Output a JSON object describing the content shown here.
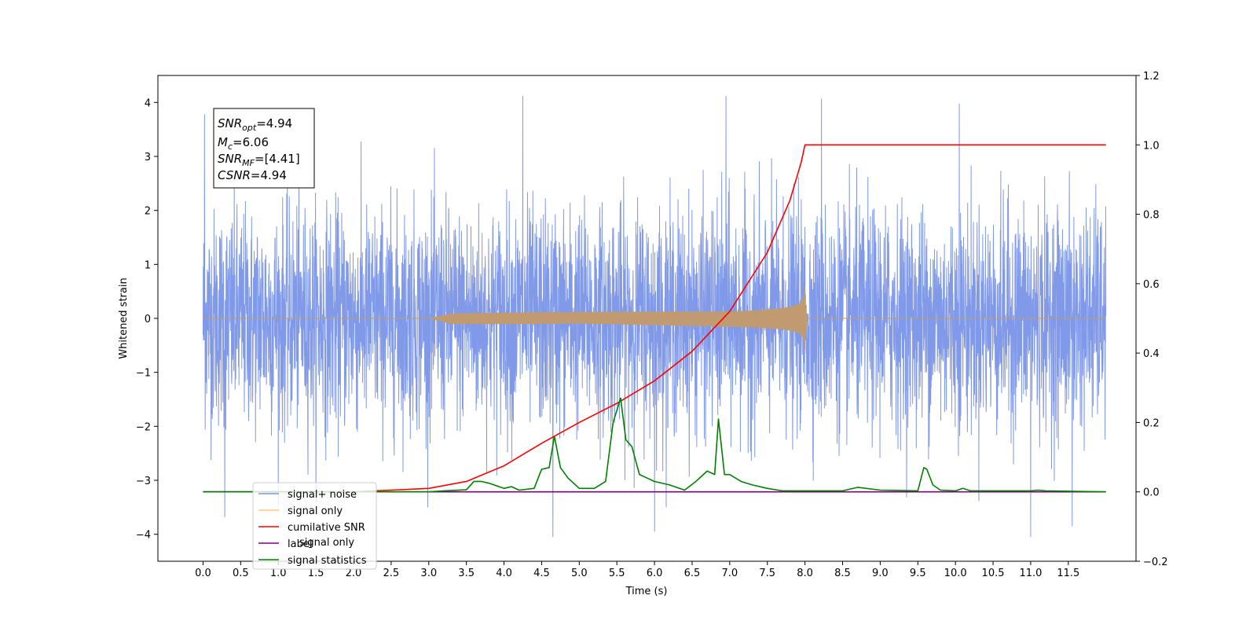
{
  "chart_data": {
    "type": "line",
    "xlabel": "Time (s)",
    "ylabel": "Whitened strain",
    "xlim": [
      -0.6,
      12.4
    ],
    "ylim": [
      -4.5,
      4.5
    ],
    "y2lim": [
      -0.2,
      1.2
    ],
    "x_ticks": [
      0.0,
      0.5,
      1.0,
      1.5,
      2.0,
      2.5,
      3.0,
      3.5,
      4.0,
      4.5,
      5.0,
      5.5,
      6.0,
      6.5,
      7.0,
      7.5,
      8.0,
      8.5,
      9.0,
      9.5,
      10.0,
      10.5,
      11.0,
      11.5
    ],
    "x_tick_labels": [
      "0.0",
      "0.5",
      "1.0",
      "1.5",
      "2.0",
      "2.5",
      "3.0",
      "3.5",
      "4.0",
      "4.5",
      "5.0",
      "5.5",
      "6.0",
      "6.5",
      "7.0",
      "7.5",
      "8.0",
      "8.5",
      "9.0",
      "9.5",
      "10.0",
      "10.5",
      "11.0",
      "11.5"
    ],
    "y_ticks": [
      -4,
      -3,
      -2,
      -1,
      0,
      1,
      2,
      3,
      4
    ],
    "y_tick_labels": [
      "−4",
      "−3",
      "−2",
      "−1",
      "0",
      "1",
      "2",
      "3",
      "4"
    ],
    "y2_ticks": [
      -0.2,
      0.0,
      0.2,
      0.4,
      0.6,
      0.8,
      1.0,
      1.2
    ],
    "y2_tick_labels": [
      "−0.2",
      "0.0",
      "0.2",
      "0.4",
      "0.6",
      "0.8",
      "1.0",
      "1.2"
    ],
    "grid": false,
    "legend_placement": "lower-left",
    "annotation": {
      "snr_opt": {
        "sym": "SNR",
        "sub": "opt",
        "val": "=4.94"
      },
      "mc": {
        "sym": "M",
        "sub": "c",
        "val": "=6.06"
      },
      "snr_mf": {
        "sym": "SNR",
        "sub": "MF",
        "val": "=[4.41]"
      },
      "csnr": {
        "sym": "CSNR",
        "val": "=4.94"
      }
    },
    "series": [
      {
        "name": "signal+ noise",
        "color": "#7a94e8",
        "axis": "left",
        "description_data": {
          "x_range": [
            0.0,
            12.0
          ],
          "amplitude_std": 1.0,
          "peaks": [
            [
              0.02,
              3.78
            ],
            [
              0.29,
              -3.68
            ],
            [
              4.25,
              4.12
            ],
            [
              4.65,
              -4.05
            ],
            [
              6.0,
              -3.95
            ],
            [
              6.95,
              4.12
            ],
            [
              8.22,
              4.07
            ],
            [
              10.05,
              3.98
            ],
            [
              11.0,
              -4.05
            ],
            [
              11.55,
              -3.85
            ]
          ]
        }
      },
      {
        "name": "signal only",
        "color": "#c09a70",
        "axis": "left",
        "description_data": {
          "chirp_start": 3.0,
          "merger_time": 8.0,
          "peak_amplitude": 0.62,
          "x_range": [
            0.0,
            12.0
          ]
        }
      },
      {
        "name": "cumilative SNR",
        "color": "#ff0000",
        "axis": "right",
        "x": [
          0.0,
          2.0,
          3.0,
          3.5,
          4.0,
          4.5,
          5.0,
          5.5,
          6.0,
          6.5,
          7.0,
          7.5,
          7.8,
          7.95,
          8.0,
          12.0
        ],
        "y": [
          0.0,
          0.0,
          0.01,
          0.03,
          0.075,
          0.14,
          0.2,
          0.255,
          0.32,
          0.405,
          0.52,
          0.69,
          0.84,
          0.95,
          1.0,
          1.0
        ]
      },
      {
        "name": "label",
        "color": "#800080",
        "axis": "right",
        "x": [
          0.0,
          12.0
        ],
        "y": [
          0.0,
          0.0
        ]
      },
      {
        "name": "signal statistics",
        "color": "#008000",
        "axis": "right",
        "x": [
          0.0,
          3.0,
          3.2,
          3.5,
          3.6,
          3.7,
          3.8,
          4.0,
          4.1,
          4.2,
          4.4,
          4.5,
          4.6,
          4.67,
          4.75,
          4.85,
          5.0,
          5.2,
          5.35,
          5.45,
          5.55,
          5.62,
          5.7,
          5.8,
          5.9,
          6.0,
          6.2,
          6.4,
          6.55,
          6.7,
          6.8,
          6.85,
          6.93,
          7.0,
          7.15,
          7.3,
          7.5,
          7.7,
          8.0,
          8.5,
          8.7,
          9.0,
          9.5,
          9.58,
          9.62,
          9.7,
          9.8,
          10.0,
          10.1,
          10.2,
          11.0,
          11.1,
          11.2,
          12.0
        ],
        "y": [
          0.0,
          0.0,
          0.003,
          0.006,
          0.03,
          0.03,
          0.025,
          0.01,
          0.015,
          0.005,
          0.01,
          0.065,
          0.07,
          0.16,
          0.07,
          0.04,
          0.01,
          0.01,
          0.03,
          0.2,
          0.27,
          0.15,
          0.13,
          0.05,
          0.04,
          0.03,
          0.02,
          0.005,
          0.03,
          0.06,
          0.05,
          0.21,
          0.05,
          0.05,
          0.03,
          0.02,
          0.01,
          0.003,
          0.003,
          0.003,
          0.013,
          0.005,
          0.003,
          0.07,
          0.065,
          0.02,
          0.005,
          0.003,
          0.01,
          0.003,
          0.003,
          0.005,
          0.003,
          0.0
        ]
      }
    ]
  },
  "legend": {
    "items": [
      {
        "label": "signal+ noise",
        "color": "#7a94e8"
      },
      {
        "label": "signal only",
        "color": "#ffc87a"
      },
      {
        "label": "cumilative SNR",
        "color": "#ff0000"
      },
      {
        "label": "label",
        "color": "#800080"
      },
      {
        "label": "signal statistics",
        "color": "#008000"
      }
    ],
    "hidden_text": "signal only"
  }
}
